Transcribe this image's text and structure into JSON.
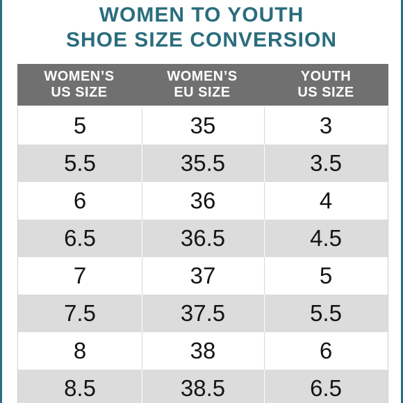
{
  "title": {
    "line1": "WOMEN TO YOUTH",
    "line2": "SHOE SIZE CONVERSION"
  },
  "colors": {
    "title": "#2a6d7d",
    "header_bg": "#707070",
    "header_text": "#ffffff",
    "row_alt_bg": "#dcdcdc",
    "frame": "#2a6d7d"
  },
  "table": {
    "headers": [
      {
        "line1": "WOMEN’S",
        "line2": "US SIZE"
      },
      {
        "line1": "WOMEN’S",
        "line2": "EU SIZE"
      },
      {
        "line1": "YOUTH",
        "line2": "US SIZE"
      }
    ],
    "rows": [
      [
        "5",
        "35",
        "3"
      ],
      [
        "5.5",
        "35.5",
        "3.5"
      ],
      [
        "6",
        "36",
        "4"
      ],
      [
        "6.5",
        "36.5",
        "4.5"
      ],
      [
        "7",
        "37",
        "5"
      ],
      [
        "7.5",
        "37.5",
        "5.5"
      ],
      [
        "8",
        "38",
        "6"
      ],
      [
        "8.5",
        "38.5",
        "6.5"
      ]
    ]
  }
}
